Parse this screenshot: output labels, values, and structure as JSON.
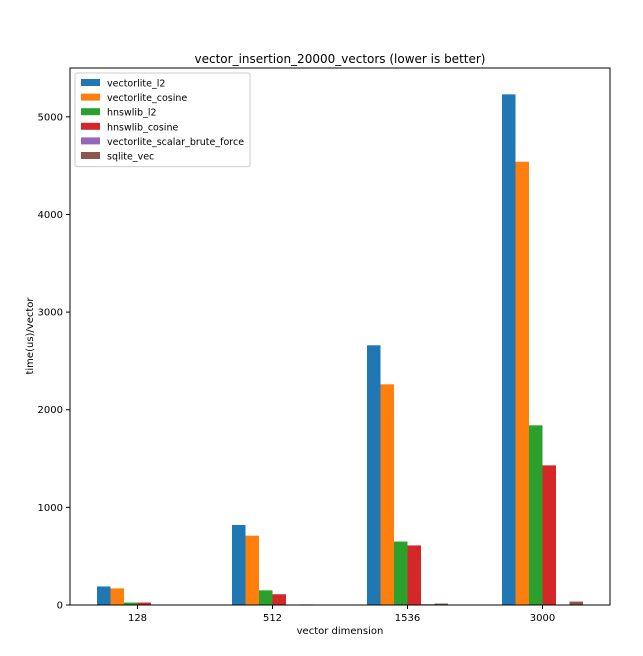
{
  "chart_data": {
    "type": "bar",
    "title": "vector_insertion_20000_vectors (lower is better)",
    "xlabel": "vector dimension",
    "ylabel": "time(us)/vector",
    "categories": [
      "128",
      "512",
      "1536",
      "3000"
    ],
    "ylim": [
      0,
      5500
    ],
    "yticks": [
      0,
      1000,
      2000,
      3000,
      4000,
      5000
    ],
    "grid": false,
    "legend_position": "top-left",
    "series": [
      {
        "name": "vectorlite_l2",
        "color": "#1f77b4",
        "values": [
          190,
          820,
          2660,
          5230
        ]
      },
      {
        "name": "vectorlite_cosine",
        "color": "#ff7f0e",
        "values": [
          170,
          710,
          2260,
          4540
        ]
      },
      {
        "name": "hnswlib_l2",
        "color": "#2ca02c",
        "values": [
          25,
          150,
          650,
          1840
        ]
      },
      {
        "name": "hnswlib_cosine",
        "color": "#d62728",
        "values": [
          25,
          110,
          610,
          1430
        ]
      },
      {
        "name": "vectorlite_scalar_brute_force",
        "color": "#9467bd",
        "values": [
          2,
          3,
          8,
          5
        ]
      },
      {
        "name": "sqlite_vec",
        "color": "#8c564b",
        "values": [
          3,
          6,
          15,
          35
        ]
      }
    ]
  }
}
